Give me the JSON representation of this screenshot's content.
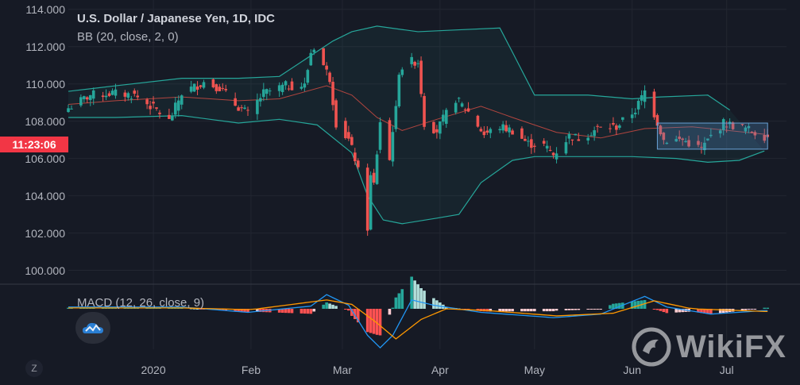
{
  "legend": {
    "title": "U.S. Dollar / Japanese Yen, 1D, IDC",
    "bb": "BB (20, close, 2, 0)",
    "macd": "MACD (12, 26, close, 9)"
  },
  "price_tag": "11:23:06",
  "watermark": "WikiFX",
  "scale_button": "Z",
  "colors": {
    "background": "#161a25",
    "up": "#26a69a",
    "down": "#ef5350",
    "bb_band": "#26a69a",
    "bb_basis": "#b2453f",
    "macd_line": "#2196f3",
    "signal_line": "#ff9800",
    "price_tag": "#f23645",
    "selection_box": "#4f86b8"
  },
  "chart_data": [
    {
      "type": "candlestick",
      "title": "U.S. Dollar / Japanese Yen, 1D, IDC",
      "y_ticks": [
        "114.000",
        "112.000",
        "110.000",
        "108.000",
        "106.000",
        "104.000",
        "102.000",
        "100.000"
      ],
      "ylim": [
        99.3,
        114.5
      ],
      "x_ticks": [
        {
          "label": "2020",
          "date": "2020-01-01"
        },
        {
          "label": "Feb",
          "date": "2020-02-01"
        },
        {
          "label": "Mar",
          "date": "2020-03-01"
        },
        {
          "label": "Apr",
          "date": "2020-04-01"
        },
        {
          "label": "May",
          "date": "2020-05-01"
        },
        {
          "label": "Jun",
          "date": "2020-06-01"
        },
        {
          "label": "Jul",
          "date": "2020-07-01"
        }
      ],
      "x_range": [
        "2019-12-05",
        "2020-07-20"
      ],
      "close_keyframes": [
        [
          "2019-12-05",
          108.7
        ],
        [
          "2019-12-12",
          109.4
        ],
        [
          "2019-12-19",
          109.5
        ],
        [
          "2019-12-26",
          109.4
        ],
        [
          "2020-01-02",
          108.6
        ],
        [
          "2020-01-06",
          108.0
        ],
        [
          "2020-01-10",
          109.5
        ],
        [
          "2020-01-17",
          110.1
        ],
        [
          "2020-01-22",
          109.8
        ],
        [
          "2020-01-27",
          108.9
        ],
        [
          "2020-01-31",
          108.4
        ],
        [
          "2020-02-05",
          109.5
        ],
        [
          "2020-02-12",
          109.9
        ],
        [
          "2020-02-18",
          109.9
        ],
        [
          "2020-02-20",
          111.7
        ],
        [
          "2020-02-21",
          112.0
        ],
        [
          "2020-02-24",
          111.0
        ],
        [
          "2020-02-26",
          110.3
        ],
        [
          "2020-02-28",
          107.9
        ],
        [
          "2020-03-03",
          107.0
        ],
        [
          "2020-03-05",
          106.0
        ],
        [
          "2020-03-06",
          105.3
        ],
        [
          "2020-03-09",
          102.3
        ],
        [
          "2020-03-10",
          105.0
        ],
        [
          "2020-03-11",
          104.6
        ],
        [
          "2020-03-13",
          108.0
        ],
        [
          "2020-03-16",
          105.9
        ],
        [
          "2020-03-17",
          107.6
        ],
        [
          "2020-03-18",
          108.6
        ],
        [
          "2020-03-19",
          110.7
        ],
        [
          "2020-03-20",
          110.9
        ],
        [
          "2020-03-23",
          111.2
        ],
        [
          "2020-03-24",
          111.2
        ],
        [
          "2020-03-25",
          111.2
        ],
        [
          "2020-03-26",
          109.6
        ],
        [
          "2020-03-27",
          107.9
        ],
        [
          "2020-03-31",
          107.5
        ],
        [
          "2020-04-03",
          108.4
        ],
        [
          "2020-04-06",
          109.2
        ],
        [
          "2020-04-10",
          108.5
        ],
        [
          "2020-04-15",
          107.3
        ],
        [
          "2020-04-20",
          107.7
        ],
        [
          "2020-04-24",
          107.5
        ],
        [
          "2020-04-29",
          106.8
        ],
        [
          "2020-05-04",
          106.7
        ],
        [
          "2020-05-07",
          106.2
        ],
        [
          "2020-05-12",
          107.2
        ],
        [
          "2020-05-15",
          107.1
        ],
        [
          "2020-05-21",
          107.6
        ],
        [
          "2020-05-27",
          107.7
        ],
        [
          "2020-06-02",
          108.6
        ],
        [
          "2020-06-05",
          109.6
        ],
        [
          "2020-06-08",
          108.4
        ],
        [
          "2020-06-11",
          107.0
        ],
        [
          "2020-06-17",
          107.0
        ],
        [
          "2020-06-23",
          106.5
        ],
        [
          "2020-06-26",
          107.2
        ],
        [
          "2020-06-30",
          107.9
        ],
        [
          "2020-07-07",
          107.6
        ],
        [
          "2020-07-13",
          107.2
        ]
      ],
      "bollinger": {
        "period": 20,
        "source": "close",
        "stddev": 2,
        "offset": 0,
        "upper_keyframes": [
          [
            "2019-12-05",
            109.6
          ],
          [
            "2019-12-20",
            109.9
          ],
          [
            "2020-01-10",
            110.3
          ],
          [
            "2020-01-28",
            110.3
          ],
          [
            "2020-02-10",
            110.4
          ],
          [
            "2020-02-27",
            112.3
          ],
          [
            "2020-03-04",
            112.8
          ],
          [
            "2020-03-12",
            113.1
          ],
          [
            "2020-03-25",
            112.8
          ],
          [
            "2020-04-07",
            112.9
          ],
          [
            "2020-04-20",
            113.0
          ],
          [
            "2020-04-24",
            111.7
          ],
          [
            "2020-05-01",
            109.4
          ],
          [
            "2020-05-18",
            109.4
          ],
          [
            "2020-06-01",
            109.2
          ],
          [
            "2020-06-10",
            109.3
          ],
          [
            "2020-06-25",
            109.4
          ],
          [
            "2020-07-02",
            108.6
          ]
        ],
        "basis_keyframes": [
          [
            "2019-12-05",
            108.9
          ],
          [
            "2019-12-20",
            109.1
          ],
          [
            "2020-01-10",
            109.3
          ],
          [
            "2020-01-28",
            109.1
          ],
          [
            "2020-02-10",
            109.2
          ],
          [
            "2020-02-25",
            109.9
          ],
          [
            "2020-03-04",
            109.4
          ],
          [
            "2020-03-12",
            108.2
          ],
          [
            "2020-03-20",
            107.5
          ],
          [
            "2020-03-31",
            108.1
          ],
          [
            "2020-04-14",
            108.8
          ],
          [
            "2020-04-24",
            108.2
          ],
          [
            "2020-05-08",
            107.4
          ],
          [
            "2020-05-22",
            107.1
          ],
          [
            "2020-06-05",
            107.6
          ],
          [
            "2020-06-20",
            107.7
          ],
          [
            "2020-07-13",
            107.3
          ]
        ],
        "lower_keyframes": [
          [
            "2019-12-05",
            108.2
          ],
          [
            "2019-12-20",
            108.2
          ],
          [
            "2020-01-10",
            108.3
          ],
          [
            "2020-01-28",
            107.9
          ],
          [
            "2020-02-10",
            108.1
          ],
          [
            "2020-02-22",
            107.8
          ],
          [
            "2020-03-04",
            106.3
          ],
          [
            "2020-03-09",
            104.0
          ],
          [
            "2020-03-14",
            102.7
          ],
          [
            "2020-03-20",
            102.5
          ],
          [
            "2020-03-31",
            102.8
          ],
          [
            "2020-04-07",
            103.0
          ],
          [
            "2020-04-14",
            104.7
          ],
          [
            "2020-04-24",
            105.9
          ],
          [
            "2020-05-01",
            106.1
          ],
          [
            "2020-05-08",
            106.1
          ],
          [
            "2020-05-22",
            106.1
          ],
          [
            "2020-06-01",
            106.1
          ],
          [
            "2020-06-15",
            106.0
          ],
          [
            "2020-06-25",
            105.8
          ],
          [
            "2020-07-05",
            105.9
          ],
          [
            "2020-07-13",
            106.4
          ]
        ]
      },
      "selection_box": {
        "start": "2020-06-09",
        "end": "2020-07-14",
        "y_high": 107.9,
        "y_low": 106.5
      }
    },
    {
      "type": "macd",
      "title": "MACD (12, 26, close, 9)",
      "ylim": [
        -2.5,
        1.3
      ],
      "macd_keyframes": [
        [
          "2019-12-05",
          0.1
        ],
        [
          "2020-01-10",
          0.1
        ],
        [
          "2020-01-31",
          -0.2
        ],
        [
          "2020-02-20",
          0.15
        ],
        [
          "2020-02-25",
          0.8
        ],
        [
          "2020-03-03",
          0.2
        ],
        [
          "2020-03-09",
          -1.5
        ],
        [
          "2020-03-13",
          -2.2
        ],
        [
          "2020-03-17",
          -1.5
        ],
        [
          "2020-03-23",
          0.5
        ],
        [
          "2020-03-30",
          0.2
        ],
        [
          "2020-04-14",
          -0.2
        ],
        [
          "2020-05-07",
          -0.5
        ],
        [
          "2020-05-22",
          -0.3
        ],
        [
          "2020-06-05",
          0.7
        ],
        [
          "2020-06-12",
          0.1
        ],
        [
          "2020-06-26",
          -0.3
        ],
        [
          "2020-07-13",
          -0.1
        ]
      ],
      "signal_keyframes": [
        [
          "2019-12-05",
          0.05
        ],
        [
          "2020-01-10",
          0.05
        ],
        [
          "2020-02-01",
          -0.05
        ],
        [
          "2020-02-25",
          0.5
        ],
        [
          "2020-03-04",
          0.25
        ],
        [
          "2020-03-12",
          -0.8
        ],
        [
          "2020-03-18",
          -1.7
        ],
        [
          "2020-03-26",
          -0.6
        ],
        [
          "2020-04-03",
          0.0
        ],
        [
          "2020-04-16",
          -0.1
        ],
        [
          "2020-05-08",
          -0.4
        ],
        [
          "2020-05-26",
          -0.25
        ],
        [
          "2020-06-08",
          0.45
        ],
        [
          "2020-06-20",
          0.0
        ],
        [
          "2020-07-13",
          -0.15
        ]
      ]
    }
  ]
}
